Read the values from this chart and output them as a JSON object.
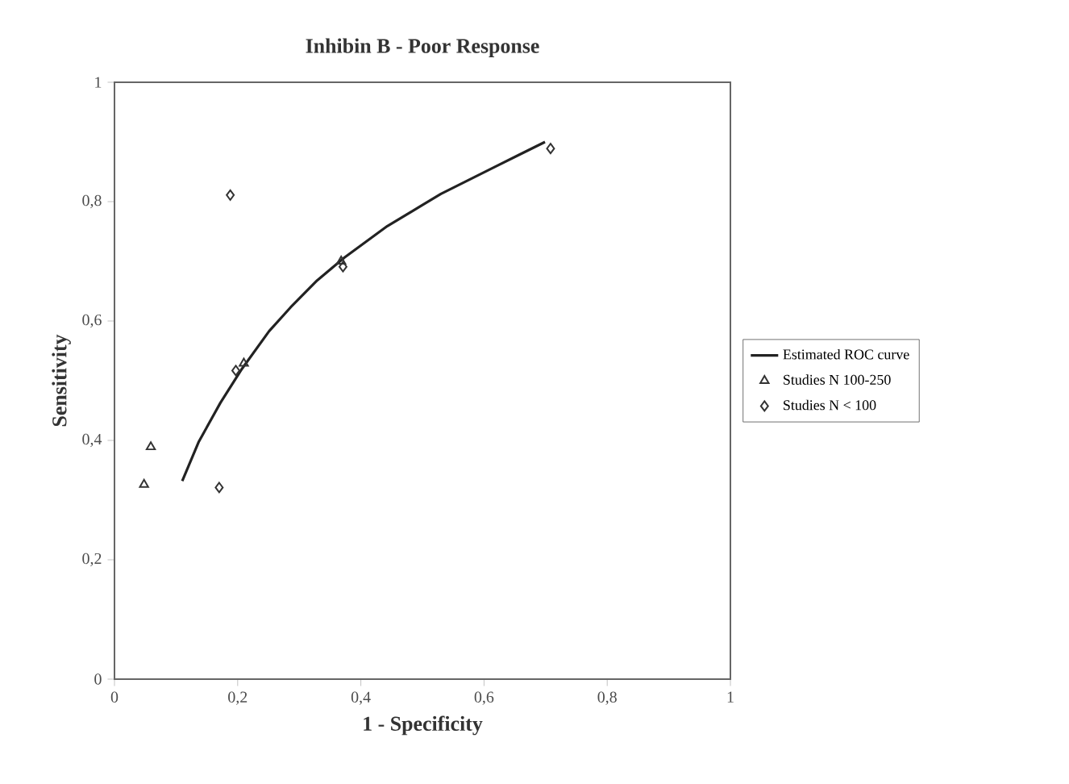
{
  "chart_data": {
    "type": "scatter",
    "title": "Inhibin B - Poor Response",
    "xlabel": "1 - Specificity",
    "ylabel": "Sensitivity",
    "xlim": [
      0,
      1
    ],
    "ylim": [
      0,
      1
    ],
    "xticks": [
      0,
      {
        "value": 0.2,
        "label": "0,2"
      },
      {
        "value": 0.4,
        "label": "0,4"
      },
      {
        "value": 0.6,
        "label": "0,6"
      },
      {
        "value": 0.8,
        "label": "0,8"
      },
      1
    ],
    "yticks": [
      0,
      {
        "value": 0.2,
        "label": "0,2"
      },
      {
        "value": 0.4,
        "label": "0,4"
      },
      {
        "value": 0.6,
        "label": "0,6"
      },
      {
        "value": 0.8,
        "label": "0,8"
      },
      1
    ],
    "grid": false,
    "legend": "right",
    "series": [
      {
        "name": "Estimated ROC curve",
        "type": "line",
        "color": "#222222",
        "marker": "none",
        "line_style": "solid",
        "x": [
          0.11,
          0.137,
          0.172,
          0.207,
          0.251,
          0.286,
          0.329,
          0.373,
          0.443,
          0.53,
          0.617,
          0.66,
          0.699
        ],
        "values": [
          0.332,
          0.398,
          0.463,
          0.52,
          0.583,
          0.623,
          0.668,
          0.706,
          0.759,
          0.813,
          0.858,
          0.88,
          0.9
        ]
      },
      {
        "name": "Studies N 100-250",
        "type": "scatter",
        "color": "#333333",
        "marker": "triangle",
        "x": [
          0.048,
          0.059,
          0.21,
          0.368
        ],
        "values": [
          0.326,
          0.389,
          0.529,
          0.7
        ]
      },
      {
        "name": "Studies N < 100",
        "type": "scatter",
        "color": "#333333",
        "marker": "diamond",
        "x": [
          0.188,
          0.17,
          0.197,
          0.371,
          0.708
        ],
        "values": [
          0.811,
          0.321,
          0.517,
          0.691,
          0.889
        ]
      }
    ]
  }
}
